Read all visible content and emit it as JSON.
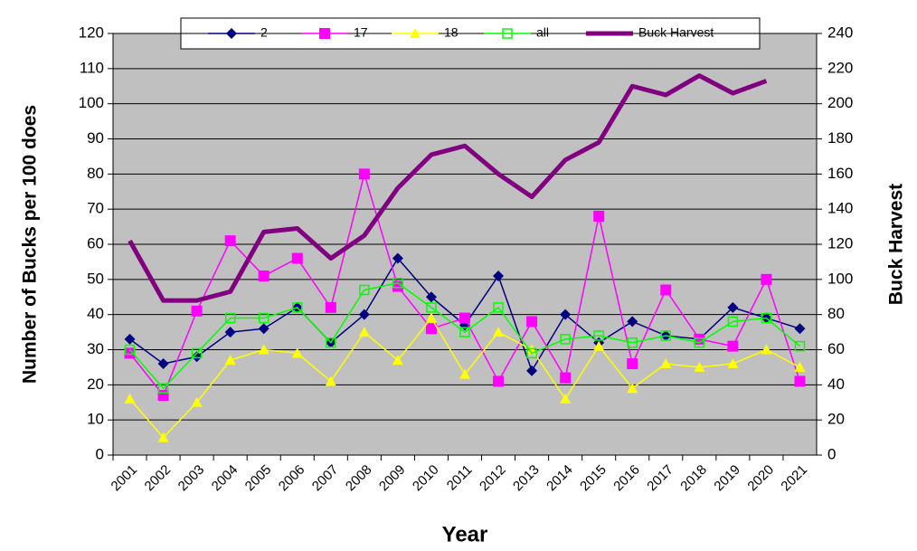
{
  "chart_data": {
    "type": "line",
    "x_label": "Year",
    "y_label": "Number of Bucks per 100 does",
    "y2_label": "Buck Harvest",
    "categories": [
      "2001",
      "2002",
      "2003",
      "2004",
      "2005",
      "2006",
      "2007",
      "2008",
      "2009",
      "2010",
      "2011",
      "2012",
      "2013",
      "2014",
      "2015",
      "2016",
      "2017",
      "2018",
      "2019",
      "2020",
      "2021"
    ],
    "ylim": [
      0,
      120
    ],
    "yticks": [
      0,
      10,
      20,
      30,
      40,
      50,
      60,
      70,
      80,
      90,
      100,
      110,
      120
    ],
    "y2lim": [
      0,
      240
    ],
    "y2ticks": [
      0,
      20,
      40,
      60,
      80,
      100,
      120,
      140,
      160,
      180,
      200,
      220,
      240
    ],
    "grid": true,
    "legend": "top",
    "series": [
      {
        "name": "2",
        "color": "#000080",
        "marker": "diamond",
        "values": [
          33,
          26,
          28,
          35,
          36,
          42,
          32,
          40,
          56,
          45,
          37,
          51,
          24,
          40,
          32,
          38,
          34,
          33,
          42,
          39,
          36
        ]
      },
      {
        "name": "17",
        "color": "#ff00ff",
        "marker": "square",
        "values": [
          29,
          17,
          41,
          61,
          51,
          56,
          42,
          80,
          48,
          36,
          39,
          21,
          38,
          22,
          68,
          26,
          47,
          33,
          31,
          50,
          21
        ]
      },
      {
        "name": "18",
        "color": "#ffff00",
        "marker": "triangle",
        "values": [
          16,
          5,
          15,
          27,
          30,
          29,
          21,
          35,
          27,
          39,
          23,
          35,
          30,
          16,
          31,
          19,
          26,
          25,
          26,
          30,
          25
        ]
      },
      {
        "name": "all",
        "color": "#00ff00",
        "marker": "open-square",
        "values": [
          30,
          19,
          29,
          39,
          39,
          42,
          32,
          47,
          49,
          42,
          35,
          42,
          29,
          33,
          34,
          32,
          34,
          32,
          38,
          39,
          31
        ]
      },
      {
        "name": "Buck Harvest",
        "color": "#800080",
        "marker": "none",
        "axis": "y2",
        "width": 5,
        "values": [
          122,
          88,
          88,
          93,
          127,
          129,
          112,
          125,
          152,
          171,
          176,
          160,
          147,
          168,
          178,
          210,
          205,
          216,
          206,
          213,
          null
        ]
      }
    ]
  }
}
